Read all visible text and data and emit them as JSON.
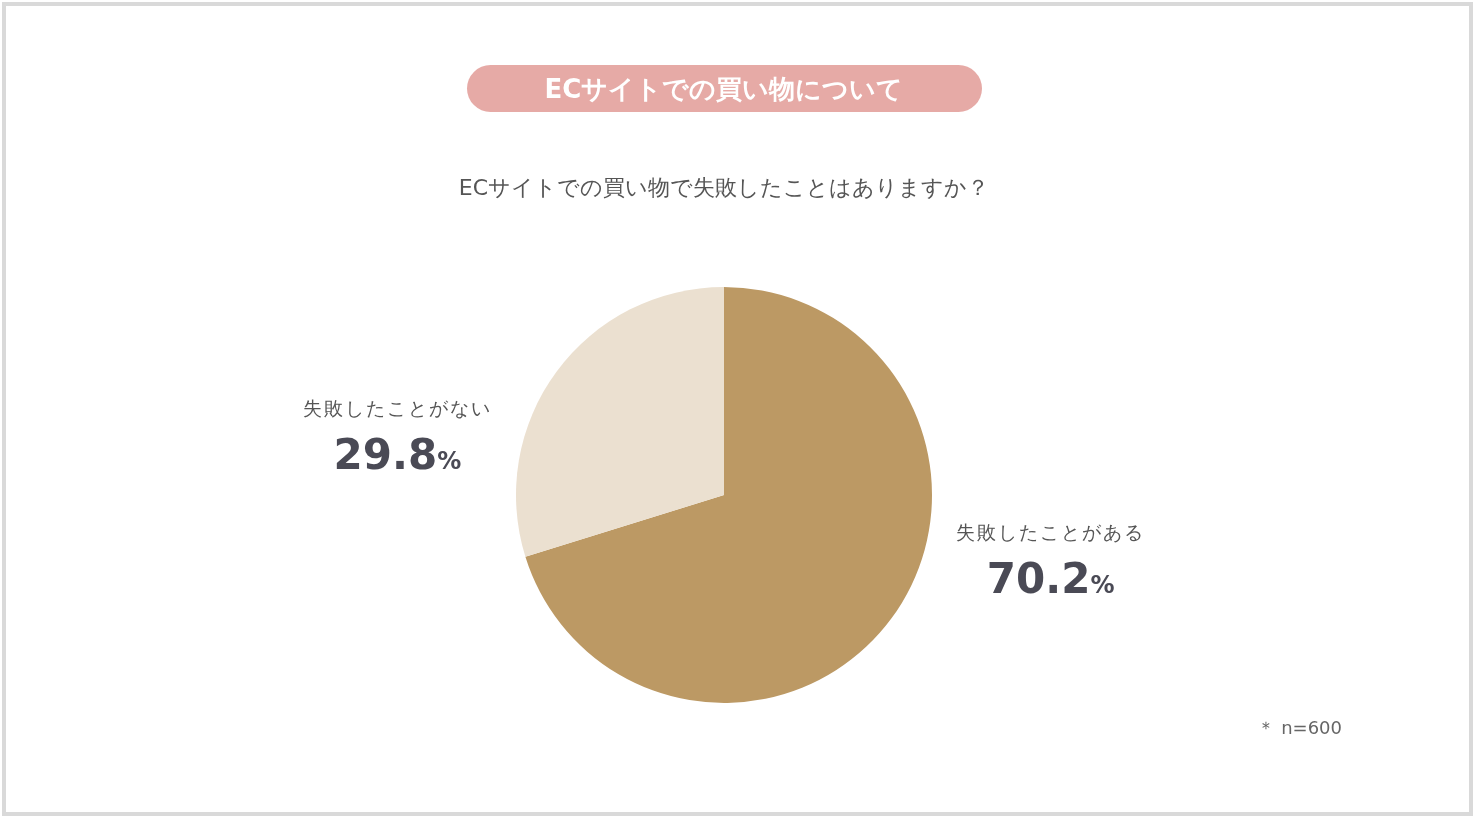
{
  "chart_data": {
    "type": "pie",
    "title": "ECサイトでの買い物について",
    "subtitle": "ECサイトでの買い物で失敗したことはありますか？",
    "categories": [
      "失敗したことがある",
      "失敗したことがない"
    ],
    "values": [
      70.2,
      29.8
    ],
    "colors": [
      "#bc9964",
      "#ebe0d0"
    ],
    "value_labels": [
      "70.2%",
      "29.8%"
    ],
    "annotations": [
      "＊ n=600"
    ]
  }
}
